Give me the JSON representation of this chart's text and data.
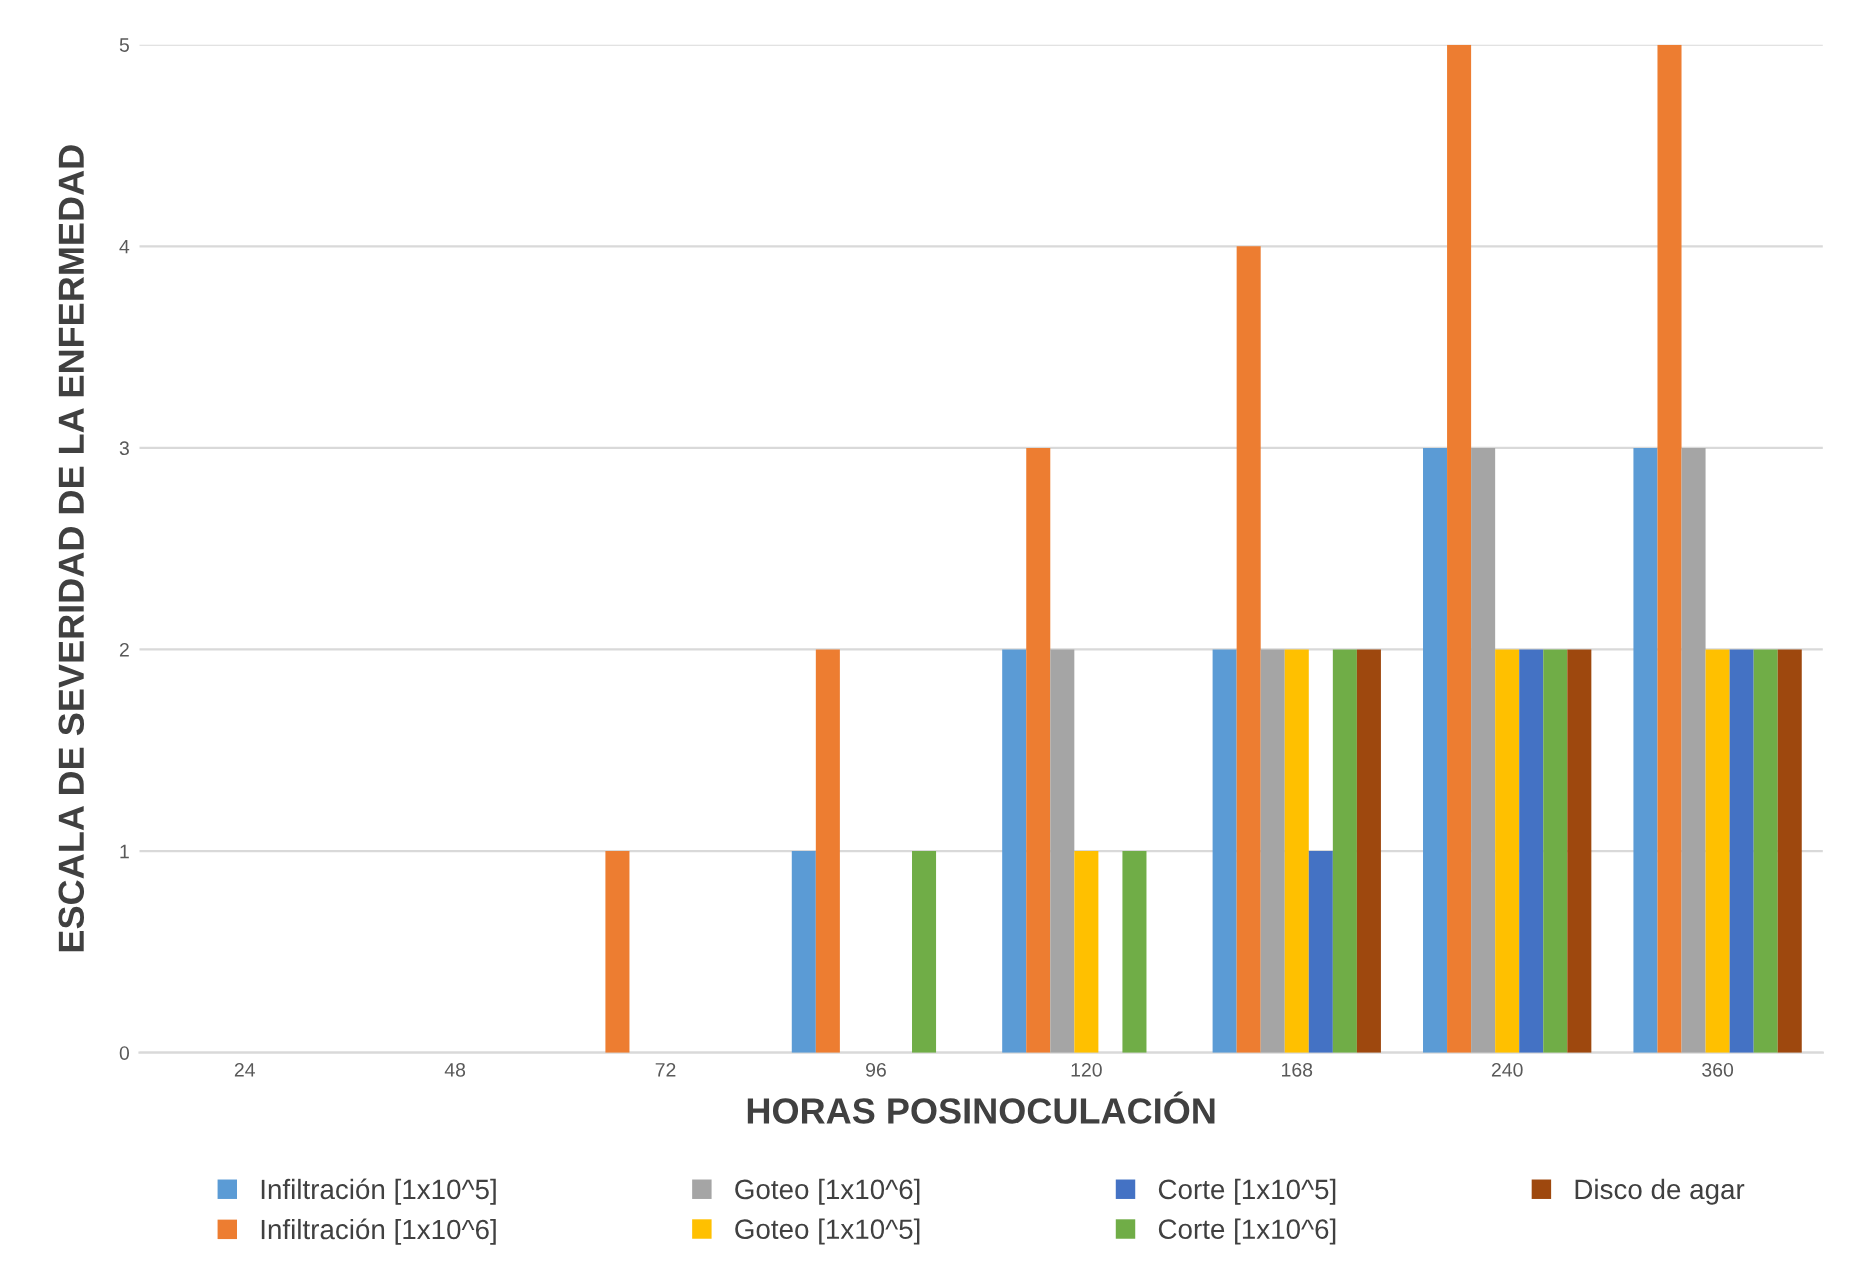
{
  "chart_data": {
    "type": "bar",
    "xlabel": "HORAS POSINOCULACIÓN",
    "ylabel": "ESCALA DE SEVERIDAD DE LA ENFERMEDAD",
    "categories": [
      "24",
      "48",
      "72",
      "96",
      "120",
      "168",
      "240",
      "360"
    ],
    "series": [
      {
        "name": "Infiltración [1x10^5]",
        "color": "#5b9bd5",
        "values": [
          0,
          0,
          0,
          1,
          2,
          2,
          3,
          3
        ]
      },
      {
        "name": "Infiltración [1x10^6]",
        "color": "#ed7d31",
        "values": [
          0,
          0,
          1,
          2,
          3,
          4,
          5,
          5
        ]
      },
      {
        "name": "Goteo [1x10^6]",
        "color": "#a5a5a5",
        "values": [
          0,
          0,
          0,
          0,
          2,
          2,
          3,
          3
        ]
      },
      {
        "name": "Goteo [1x10^5]",
        "color": "#ffc000",
        "values": [
          0,
          0,
          0,
          0,
          1,
          2,
          2,
          2
        ]
      },
      {
        "name": "Corte [1x10^5]",
        "color": "#4472c4",
        "values": [
          0,
          0,
          0,
          0,
          0,
          1,
          2,
          2
        ]
      },
      {
        "name": "Corte [1x10^6]",
        "color": "#70ad47",
        "values": [
          0,
          0,
          0,
          1,
          1,
          2,
          2,
          2
        ]
      },
      {
        "name": "Disco de agar",
        "color": "#9e480e",
        "values": [
          0,
          0,
          0,
          0,
          0,
          2,
          2,
          2
        ]
      }
    ],
    "ylim": [
      0,
      5
    ],
    "yticks": [
      0,
      1,
      2,
      3,
      4,
      5
    ],
    "grid": "y",
    "legend": "bottom"
  }
}
